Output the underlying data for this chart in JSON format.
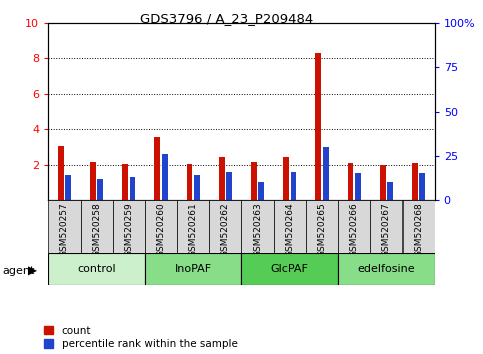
{
  "title": "GDS3796 / A_23_P209484",
  "samples": [
    "GSM520257",
    "GSM520258",
    "GSM520259",
    "GSM520260",
    "GSM520261",
    "GSM520262",
    "GSM520263",
    "GSM520264",
    "GSM520265",
    "GSM520266",
    "GSM520267",
    "GSM520268"
  ],
  "count_values": [
    3.05,
    2.15,
    2.05,
    3.55,
    2.05,
    2.45,
    2.15,
    2.45,
    8.3,
    2.1,
    2.0,
    2.1
  ],
  "percentile_values": [
    14,
    12,
    13,
    26,
    14,
    16,
    10,
    16,
    30,
    15,
    10,
    15
  ],
  "groups": [
    {
      "label": "control",
      "start": 0,
      "end": 3,
      "color": "#ccf0cc"
    },
    {
      "label": "InoPAF",
      "start": 3,
      "end": 6,
      "color": "#88dd88"
    },
    {
      "label": "GlcPAF",
      "start": 6,
      "end": 9,
      "color": "#55cc55"
    },
    {
      "label": "edelfosine",
      "start": 9,
      "end": 12,
      "color": "#88dd88"
    }
  ],
  "ylim_left": [
    0,
    10
  ],
  "ylim_right": [
    0,
    100
  ],
  "yticks_left": [
    2,
    4,
    6,
    8,
    10
  ],
  "yticks_right": [
    0,
    25,
    50,
    75,
    100
  ],
  "bar_color_count": "#cc1100",
  "bar_color_pct": "#2244cc",
  "bar_width": 0.18,
  "bar_gap": 0.05,
  "background_plot": "#ffffff",
  "cell_bg": "#d8d8d8",
  "legend_count": "count",
  "legend_pct": "percentile rank within the sample",
  "agent_label": "agent"
}
